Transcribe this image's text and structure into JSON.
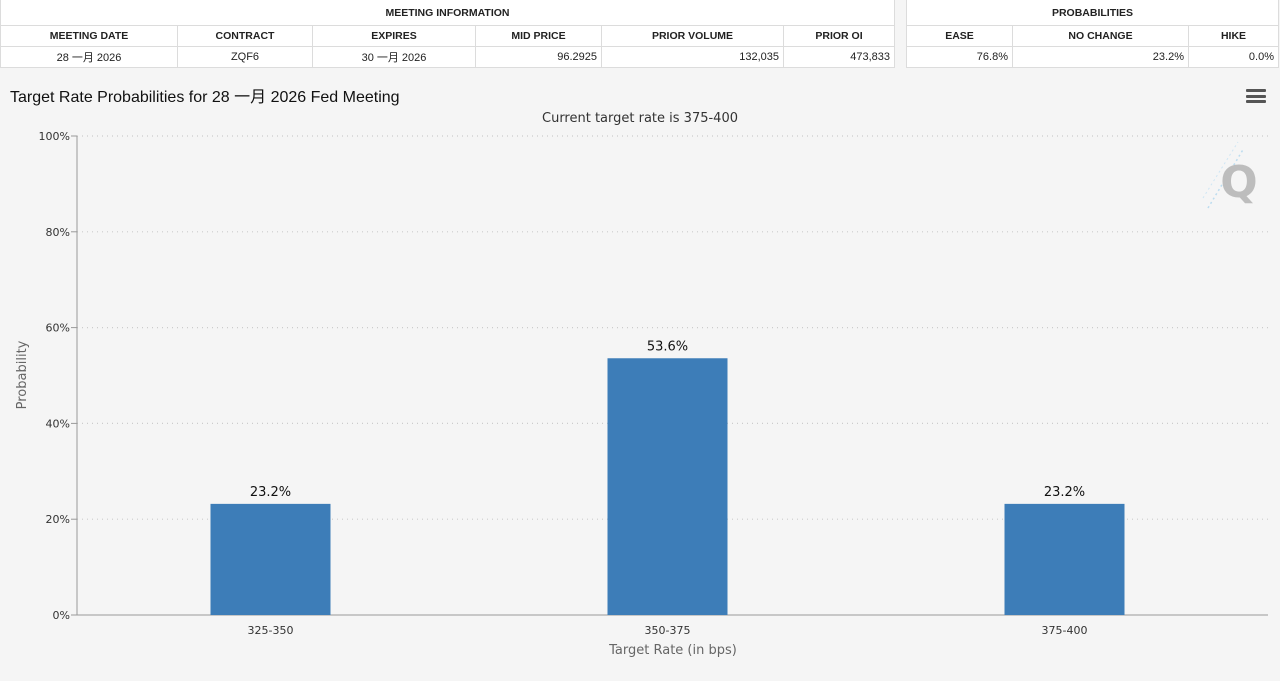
{
  "meeting_info": {
    "section_title": "MEETING INFORMATION",
    "headers": [
      "MEETING DATE",
      "CONTRACT",
      "EXPIRES",
      "MID PRICE",
      "PRIOR VOLUME",
      "PRIOR OI"
    ],
    "row": [
      "28 一月 2026",
      "ZQF6",
      "30 一月 2026",
      "96.2925",
      "132,035",
      "473,833"
    ]
  },
  "probabilities": {
    "section_title": "PROBABILITIES",
    "headers": [
      "EASE",
      "NO CHANGE",
      "HIKE"
    ],
    "row": [
      "76.8%",
      "23.2%",
      "0.0%"
    ]
  },
  "chart_title": "Target Rate Probabilities for 28 一月 2026 Fed Meeting",
  "menu_icon": "hamburger-menu-icon",
  "colors": {
    "bar": "#3d7db8",
    "grid": "#cccccc",
    "axis_text": "#333333"
  },
  "chart_data": {
    "type": "bar",
    "title": "Current target rate is 375-400",
    "categories": [
      "325-350",
      "350-375",
      "375-400"
    ],
    "values": [
      23.2,
      53.6,
      23.2
    ],
    "data_labels": [
      "23.2%",
      "53.6%",
      "23.2%"
    ],
    "xlabel": "Target Rate (in bps)",
    "ylabel": "Probability",
    "ylim": [
      0,
      100
    ],
    "yticks": [
      "0%",
      "20%",
      "40%",
      "60%",
      "80%",
      "100%"
    ],
    "grid": true,
    "watermark": "Q"
  }
}
